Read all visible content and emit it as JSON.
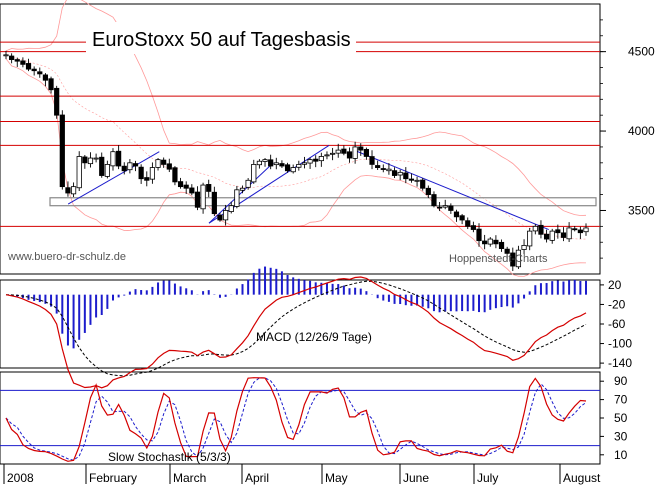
{
  "chart_data": {
    "type": "line",
    "title": "EuroStoxx 50 auf Tagesbasis",
    "watermark_left": "www.buero-dr-schulz.de",
    "watermark_right": "Hoppenstedt-Charts",
    "x_labels": [
      "2008",
      "February",
      "March",
      "April",
      "May",
      "June",
      "July",
      "August"
    ],
    "colors": {
      "price": "#000000",
      "bands": "#ff9999",
      "resistance": "#d40000",
      "channel_box": "#888888",
      "trendline": "#1c1ccc",
      "macd_line": "#d40000",
      "macd_signal": "#000000",
      "macd_hist": "#1c1ccc",
      "stoch_k": "#d40000",
      "stoch_d": "#1c1ccc",
      "stoch_levels": "#1c1ccc"
    },
    "price_panel": {
      "ylim": [
        3100,
        4800
      ],
      "yticks": [
        3500,
        4000,
        4500
      ],
      "resistance_levels": [
        4560,
        4500,
        4220,
        4060,
        3910,
        3400
      ],
      "box": {
        "top": 3580,
        "bottom": 3530
      },
      "trendlines": [
        {
          "x0": 0.15,
          "y0": 3540,
          "x1": 0.37,
          "y1": 3870
        },
        {
          "x0": 0.49,
          "y0": 3420,
          "x1": 0.645,
          "y1": 3800
        },
        {
          "x0": 0.49,
          "y0": 3420,
          "x1": 0.78,
          "y1": 3910
        },
        {
          "x0": 0.84,
          "y0": 3880,
          "x1": 1.31,
          "y1": 3380
        }
      ],
      "close": [
        4480,
        4450,
        4440,
        4420,
        4390,
        4380,
        4360,
        4320,
        4260,
        4100,
        3650,
        3610,
        3650,
        3840,
        3800,
        3830,
        3830,
        3720,
        3790,
        3870,
        3780,
        3750,
        3800,
        3780,
        3700,
        3690,
        3770,
        3820,
        3790,
        3760,
        3680,
        3650,
        3640,
        3610,
        3520,
        3660,
        3620,
        3480,
        3440,
        3500,
        3530,
        3630,
        3640,
        3690,
        3790,
        3810,
        3820,
        3780,
        3800,
        3780,
        3750,
        3770,
        3790,
        3800,
        3820,
        3810,
        3840,
        3850,
        3860,
        3880,
        3860,
        3830,
        3900,
        3880,
        3840,
        3790,
        3770,
        3760,
        3760,
        3720,
        3740,
        3700,
        3690,
        3690,
        3640,
        3600,
        3530,
        3520,
        3530,
        3500,
        3460,
        3440,
        3400,
        3380,
        3310,
        3290,
        3320,
        3290,
        3260,
        3230,
        3150,
        3250,
        3280,
        3370,
        3400,
        3350,
        3320,
        3370,
        3360,
        3330,
        3390,
        3380,
        3360,
        3390
      ]
    },
    "macd_panel": {
      "title": "MACD (12/26/9 Tage)",
      "ylim": [
        -150,
        30
      ],
      "yticks": [
        20,
        -20,
        -60,
        -100,
        -140
      ]
    },
    "stoch_panel": {
      "title": "Slow Stochastik (5/3/3)",
      "ylim": [
        0,
        100
      ],
      "yticks": [
        10,
        30,
        50,
        70,
        90
      ],
      "levels": [
        20,
        80
      ]
    }
  }
}
